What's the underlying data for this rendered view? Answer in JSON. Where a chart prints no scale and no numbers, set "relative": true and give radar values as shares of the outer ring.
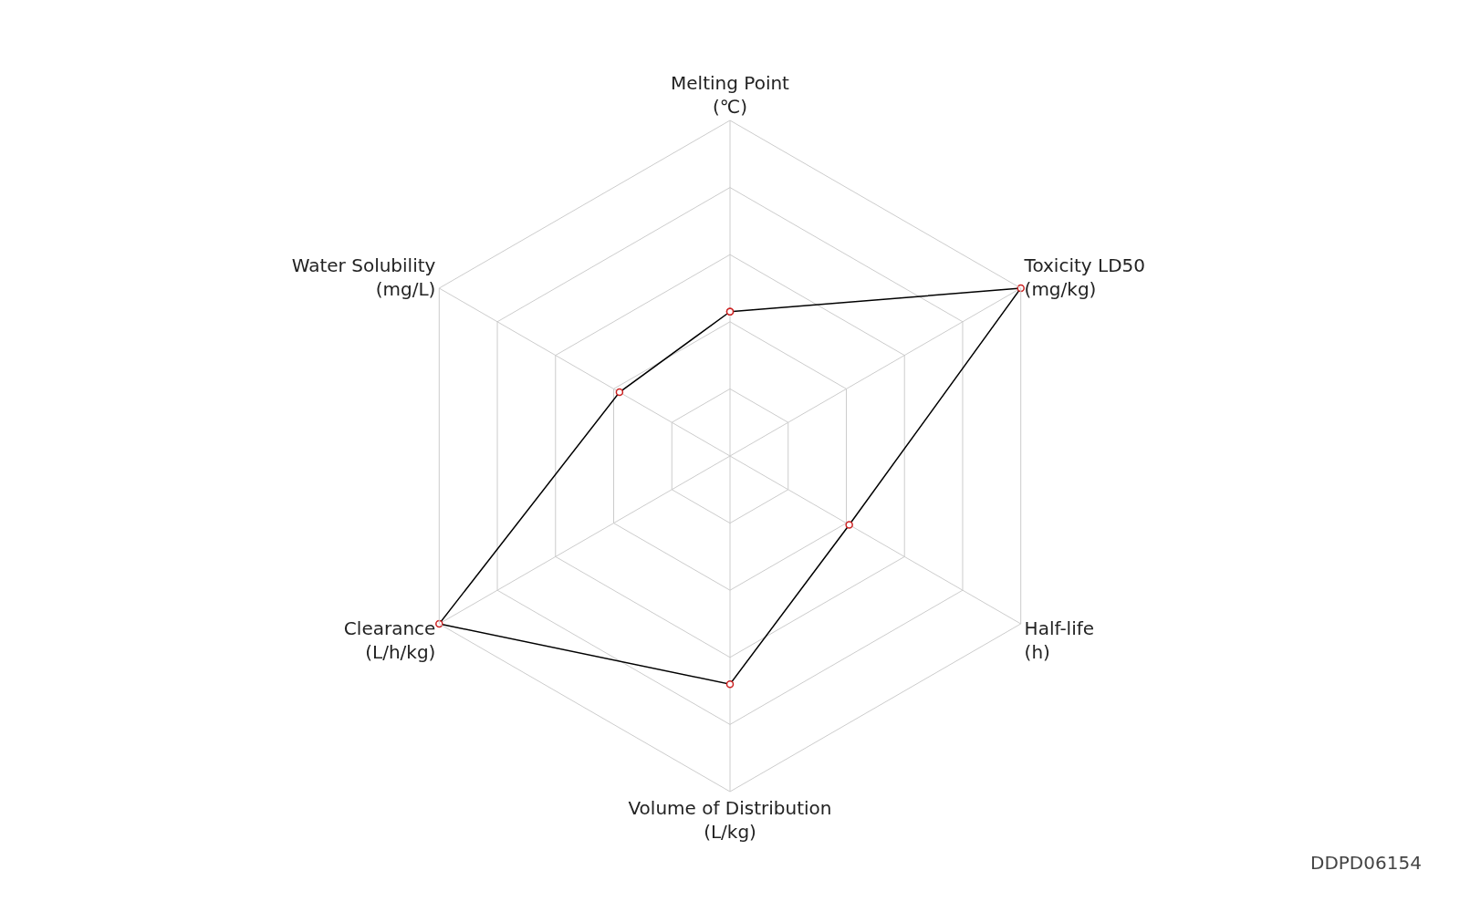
{
  "chart_data": {
    "type": "radar",
    "relative": true,
    "categories": [
      "Melting Point\n(℃)",
      "Toxicity LD50\n(mg/kg)",
      "Half-life\n(h)",
      "Volume of Distribution\n(L/kg)",
      "Clearance\n(L/h/kg)",
      "Water Solubility\n(mg/L)"
    ],
    "series": [
      {
        "color": "#000000",
        "values": [
          0.43,
          1.0,
          0.41,
          0.68,
          1.0,
          0.38
        ]
      }
    ],
    "marker": "circle",
    "line_style": "solid",
    "grid": true,
    "annotations": [
      "DDPD06154"
    ]
  }
}
